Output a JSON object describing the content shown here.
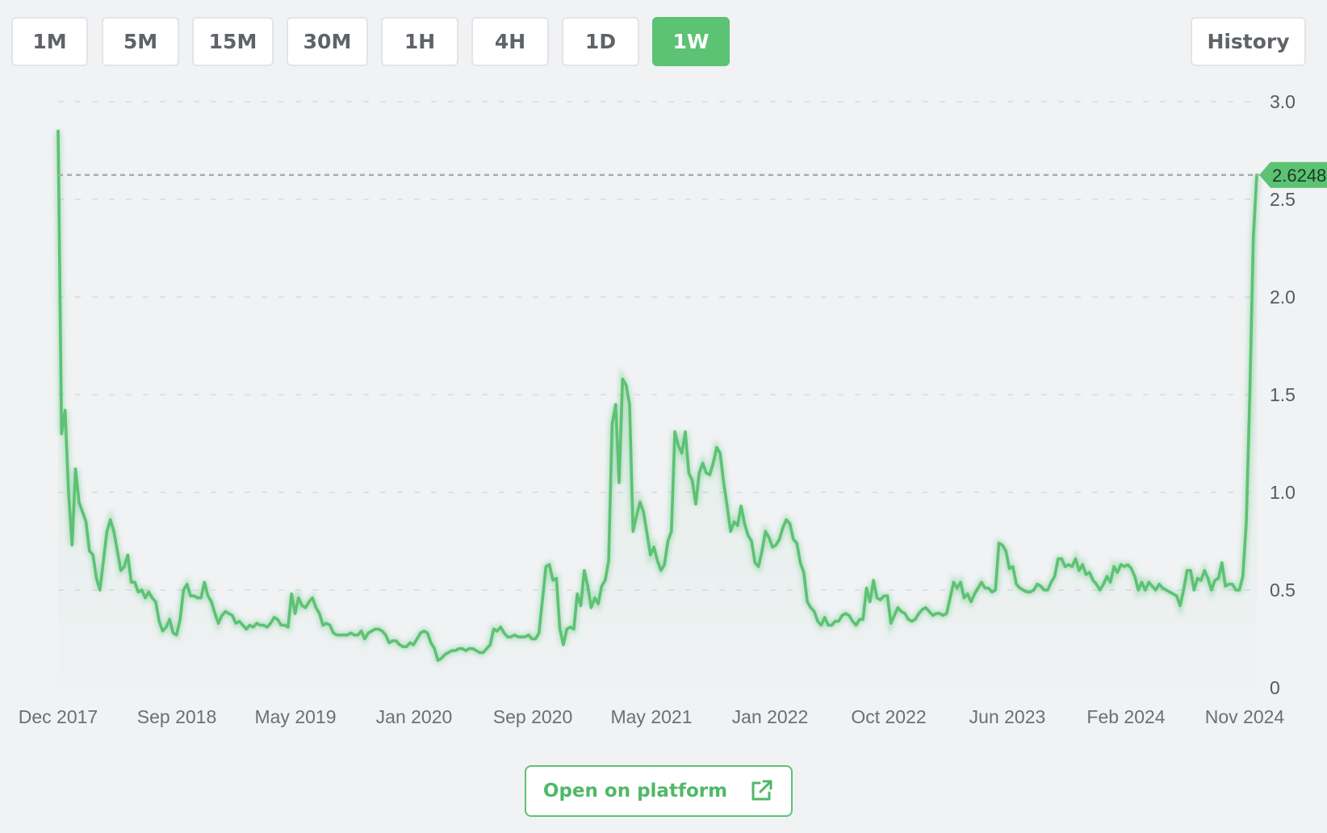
{
  "timeframes": [
    "1M",
    "5M",
    "15M",
    "30M",
    "1H",
    "4H",
    "1D",
    "1W"
  ],
  "active_timeframe": "1W",
  "history_label": "History",
  "open_platform_label": "Open on platform",
  "icons": {
    "open_platform": "external-link-icon"
  },
  "colors": {
    "accent": "#5cc274",
    "line": "#5cc274",
    "price_tag": "#5cc274",
    "grid": "#d7d9dc"
  },
  "chart_data": {
    "type": "area",
    "title": "",
    "xlabel": "",
    "ylabel": "",
    "ylim": [
      0,
      3.0
    ],
    "y_ticks": [
      "0",
      "0.5",
      "1.0",
      "1.5",
      "2.0",
      "2.5",
      "3.0"
    ],
    "x_ticks": [
      "Dec 2017",
      "Sep 2018",
      "May 2019",
      "Jan 2020",
      "Sep 2020",
      "May 2021",
      "Jan 2022",
      "Oct 2022",
      "Jun 2023",
      "Feb 2024",
      "Nov 2024"
    ],
    "grid": true,
    "current_price_label": "2.6248",
    "current_price": 2.6248,
    "series": [
      {
        "values": [
          2.85,
          1.3,
          1.42,
          1.0,
          0.73,
          1.12,
          0.95,
          0.9,
          0.85,
          0.7,
          0.68,
          0.56,
          0.5,
          0.65,
          0.8,
          0.86,
          0.8,
          0.7,
          0.6,
          0.62,
          0.68,
          0.54,
          0.54,
          0.49,
          0.5,
          0.46,
          0.49,
          0.46,
          0.44,
          0.34,
          0.29,
          0.31,
          0.35,
          0.28,
          0.27,
          0.35,
          0.5,
          0.53,
          0.47,
          0.47,
          0.46,
          0.46,
          0.54,
          0.47,
          0.44,
          0.38,
          0.33,
          0.37,
          0.39,
          0.38,
          0.37,
          0.33,
          0.34,
          0.32,
          0.3,
          0.32,
          0.31,
          0.33,
          0.32,
          0.32,
          0.31,
          0.33,
          0.36,
          0.35,
          0.32,
          0.32,
          0.31,
          0.48,
          0.38,
          0.46,
          0.42,
          0.41,
          0.44,
          0.46,
          0.41,
          0.38,
          0.32,
          0.33,
          0.32,
          0.28,
          0.27,
          0.27,
          0.27,
          0.27,
          0.28,
          0.27,
          0.27,
          0.29,
          0.25,
          0.28,
          0.29,
          0.3,
          0.3,
          0.29,
          0.27,
          0.23,
          0.24,
          0.24,
          0.22,
          0.21,
          0.21,
          0.23,
          0.22,
          0.25,
          0.28,
          0.29,
          0.28,
          0.23,
          0.2,
          0.14,
          0.15,
          0.17,
          0.18,
          0.19,
          0.19,
          0.2,
          0.2,
          0.19,
          0.2,
          0.2,
          0.19,
          0.18,
          0.18,
          0.2,
          0.22,
          0.3,
          0.29,
          0.31,
          0.28,
          0.26,
          0.26,
          0.27,
          0.26,
          0.26,
          0.26,
          0.27,
          0.25,
          0.25,
          0.28,
          0.45,
          0.62,
          0.63,
          0.55,
          0.56,
          0.3,
          0.22,
          0.3,
          0.31,
          0.3,
          0.48,
          0.42,
          0.6,
          0.52,
          0.41,
          0.46,
          0.43,
          0.52,
          0.55,
          0.65,
          1.35,
          1.45,
          1.05,
          1.58,
          1.55,
          1.45,
          0.8,
          0.88,
          0.95,
          0.9,
          0.79,
          0.68,
          0.72,
          0.65,
          0.6,
          0.63,
          0.75,
          0.8,
          1.31,
          1.24,
          1.2,
          1.31,
          1.1,
          1.06,
          0.94,
          1.1,
          1.15,
          1.1,
          1.09,
          1.15,
          1.23,
          1.2,
          1.05,
          0.93,
          0.8,
          0.85,
          0.83,
          0.93,
          0.84,
          0.78,
          0.75,
          0.64,
          0.62,
          0.7,
          0.8,
          0.77,
          0.72,
          0.73,
          0.76,
          0.82,
          0.86,
          0.84,
          0.76,
          0.74,
          0.64,
          0.59,
          0.44,
          0.41,
          0.39,
          0.34,
          0.32,
          0.36,
          0.32,
          0.32,
          0.34,
          0.34,
          0.37,
          0.38,
          0.37,
          0.34,
          0.32,
          0.35,
          0.35,
          0.51,
          0.44,
          0.55,
          0.46,
          0.45,
          0.47,
          0.47,
          0.33,
          0.37,
          0.41,
          0.39,
          0.38,
          0.35,
          0.34,
          0.35,
          0.38,
          0.4,
          0.41,
          0.39,
          0.37,
          0.38,
          0.38,
          0.37,
          0.38,
          0.46,
          0.54,
          0.51,
          0.54,
          0.46,
          0.48,
          0.44,
          0.48,
          0.51,
          0.54,
          0.51,
          0.51,
          0.49,
          0.5,
          0.74,
          0.73,
          0.7,
          0.61,
          0.62,
          0.53,
          0.51,
          0.5,
          0.49,
          0.49,
          0.5,
          0.53,
          0.52,
          0.5,
          0.5,
          0.54,
          0.57,
          0.66,
          0.66,
          0.62,
          0.63,
          0.62,
          0.66,
          0.6,
          0.63,
          0.58,
          0.59,
          0.55,
          0.53,
          0.5,
          0.53,
          0.57,
          0.54,
          0.62,
          0.59,
          0.63,
          0.62,
          0.63,
          0.61,
          0.57,
          0.5,
          0.54,
          0.5,
          0.54,
          0.52,
          0.5,
          0.53,
          0.51,
          0.5,
          0.49,
          0.48,
          0.47,
          0.42,
          0.5,
          0.6,
          0.6,
          0.5,
          0.56,
          0.55,
          0.6,
          0.56,
          0.5,
          0.55,
          0.56,
          0.64,
          0.52,
          0.53,
          0.53,
          0.5,
          0.5,
          0.57,
          0.85,
          1.5,
          2.3,
          2.6248
        ]
      }
    ]
  }
}
